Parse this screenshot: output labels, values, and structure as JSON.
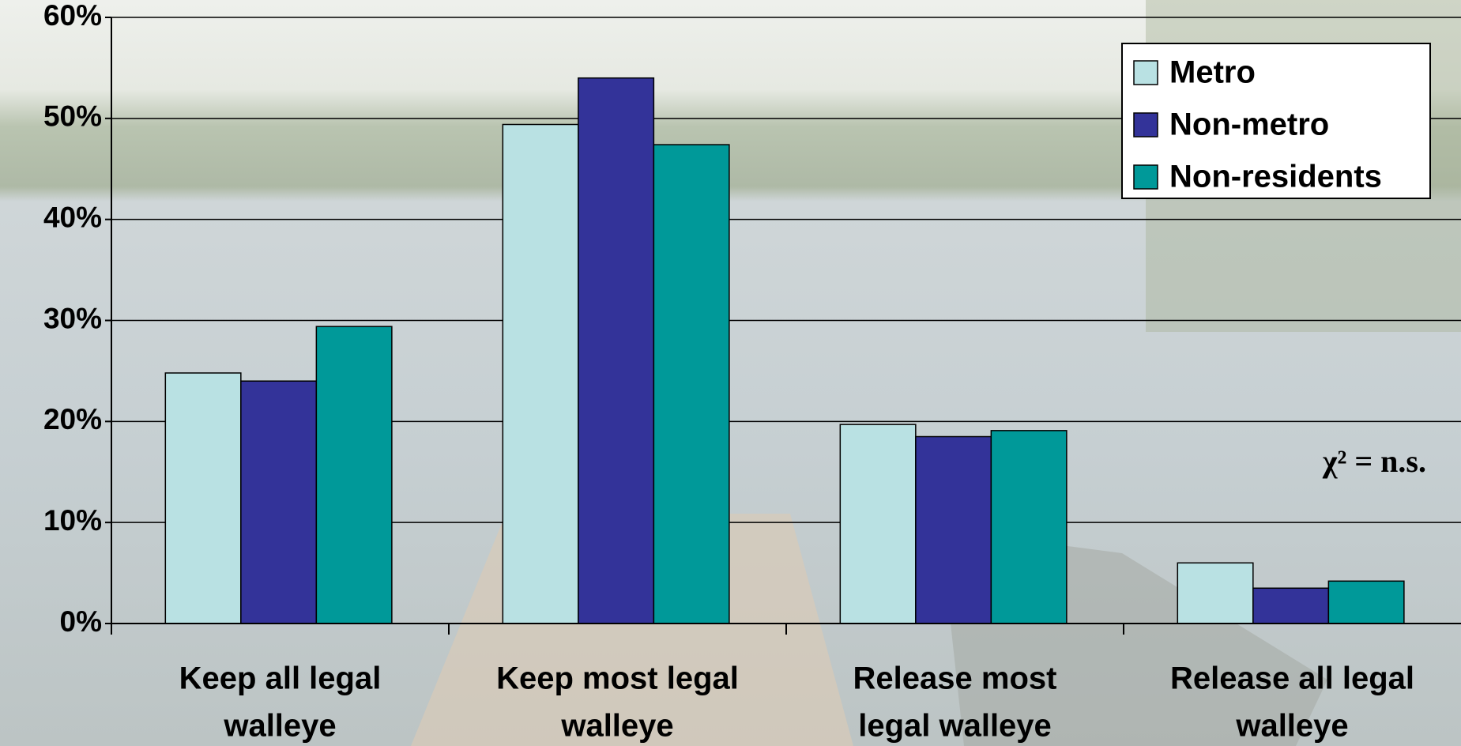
{
  "chart_data": {
    "type": "bar",
    "categories": [
      [
        "Keep all legal",
        "walleye"
      ],
      [
        "Keep most legal",
        "walleye"
      ],
      [
        "Release most",
        "legal walleye"
      ],
      [
        "Release all legal",
        "walleye"
      ]
    ],
    "series": [
      {
        "name": "Metro",
        "color": "#b9e1e3",
        "values": [
          24.8,
          49.4,
          19.7,
          6
        ]
      },
      {
        "name": "Non-metro",
        "color": "#333399",
        "values": [
          24,
          54,
          18.5,
          3.5
        ]
      },
      {
        "name": "Non-residents",
        "color": "#009999",
        "values": [
          29.4,
          47.4,
          19.1,
          4.2
        ]
      }
    ],
    "ylim": [
      0,
      60
    ],
    "yticks": [
      {
        "value": 0,
        "label": "0%"
      },
      {
        "value": 10,
        "label": "10%"
      },
      {
        "value": 20,
        "label": "20%"
      },
      {
        "value": 30,
        "label": "30%"
      },
      {
        "value": 40,
        "label": "40%"
      },
      {
        "value": 50,
        "label": "50%"
      },
      {
        "value": 60,
        "label": "60%"
      }
    ],
    "grid": true,
    "legend": "top-right",
    "annotation": "χ² = n.s."
  }
}
